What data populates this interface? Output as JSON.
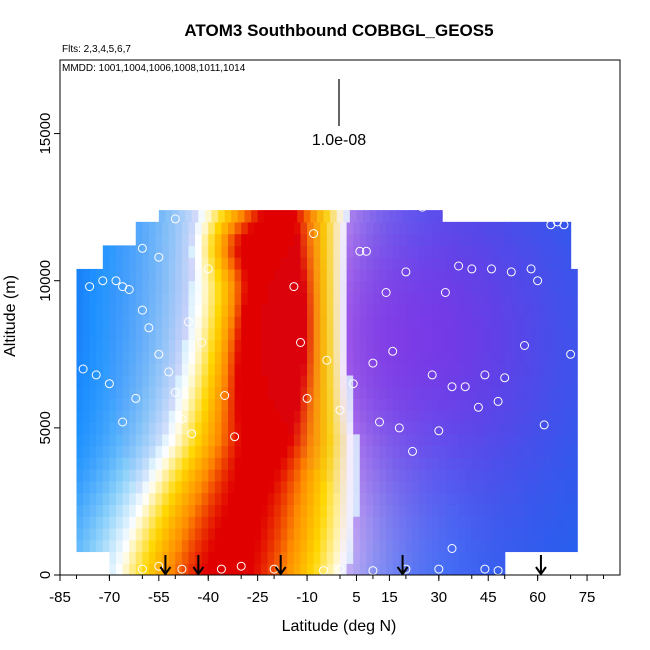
{
  "chart_data": {
    "type": "heatmap",
    "title": "ATOM3 Southbound COBBGL_GEOS5",
    "flights_label": "Flts: 2,3,4,5,6,7",
    "dates_label": "MMDD: 1001,1004,1006,1008,1011,1014",
    "xlabel": "Latitude (deg N)",
    "ylabel": "Altitude (m)",
    "xlim": [
      -85,
      85
    ],
    "ylim": [
      0,
      17500
    ],
    "x_ticks": [
      -85,
      -70,
      -55,
      -40,
      -25,
      -10,
      5,
      15,
      30,
      45,
      60,
      75
    ],
    "y_ticks": [
      0,
      5000,
      10000,
      15000
    ],
    "x_tick_labels": [
      "-85",
      "-70",
      "-55",
      "-40",
      "-25",
      "-10",
      "5",
      "15",
      "30",
      "45",
      "60",
      "75"
    ],
    "y_tick_labels": [
      "0",
      "5000",
      "10000",
      "15000"
    ],
    "scale_label": "1.0e-08",
    "colormap": [
      "#0000c8",
      "#1e90ff",
      "#87cefa",
      "#ffffff",
      "#ffd700",
      "#ff8c00",
      "#e00000"
    ],
    "secondary_color": "#8a2be2",
    "grid": false,
    "flight_marker_latitudes": [
      -53,
      -43,
      -18,
      19,
      61
    ],
    "samples": [
      {
        "lat": -60,
        "alt": 9000
      },
      {
        "lat": -58,
        "alt": 8400
      },
      {
        "lat": -55,
        "alt": 7500
      },
      {
        "lat": -52,
        "alt": 6900
      },
      {
        "lat": -50,
        "alt": 6200
      },
      {
        "lat": -48,
        "alt": 5300
      },
      {
        "lat": -45,
        "alt": 4800
      },
      {
        "lat": -62,
        "alt": 6000
      },
      {
        "lat": -66,
        "alt": 5200
      },
      {
        "lat": -70,
        "alt": 6500
      },
      {
        "lat": -74,
        "alt": 6800
      },
      {
        "lat": -78,
        "alt": 7000
      },
      {
        "lat": -68,
        "alt": 10000
      },
      {
        "lat": -64,
        "alt": 9700
      },
      {
        "lat": -60,
        "alt": 11100
      },
      {
        "lat": -55,
        "alt": 10800
      },
      {
        "lat": -50,
        "alt": 12100
      },
      {
        "lat": -46,
        "alt": 8600
      },
      {
        "lat": -42,
        "alt": 7900
      },
      {
        "lat": -40,
        "alt": 10400
      },
      {
        "lat": -35,
        "alt": 6100
      },
      {
        "lat": -32,
        "alt": 4700
      },
      {
        "lat": -14,
        "alt": 9800
      },
      {
        "lat": -12,
        "alt": 7900
      },
      {
        "lat": -10,
        "alt": 6000
      },
      {
        "lat": -8,
        "alt": 11600
      },
      {
        "lat": -4,
        "alt": 7300
      },
      {
        "lat": 0,
        "alt": 5600
      },
      {
        "lat": 4,
        "alt": 6500
      },
      {
        "lat": 6,
        "alt": 11000
      },
      {
        "lat": 8,
        "alt": 11000
      },
      {
        "lat": 10,
        "alt": 7200
      },
      {
        "lat": 12,
        "alt": 5200
      },
      {
        "lat": 14,
        "alt": 9600
      },
      {
        "lat": 16,
        "alt": 7600
      },
      {
        "lat": 18,
        "alt": 5000
      },
      {
        "lat": 20,
        "alt": 10300
      },
      {
        "lat": 22,
        "alt": 4200
      },
      {
        "lat": 25,
        "alt": 12500
      },
      {
        "lat": 28,
        "alt": 6800
      },
      {
        "lat": 30,
        "alt": 4900
      },
      {
        "lat": 32,
        "alt": 9600
      },
      {
        "lat": 34,
        "alt": 6400
      },
      {
        "lat": 36,
        "alt": 10500
      },
      {
        "lat": 38,
        "alt": 6400
      },
      {
        "lat": 40,
        "alt": 10400
      },
      {
        "lat": 42,
        "alt": 5700
      },
      {
        "lat": 44,
        "alt": 6800
      },
      {
        "lat": 46,
        "alt": 10400
      },
      {
        "lat": 48,
        "alt": 5900
      },
      {
        "lat": 50,
        "alt": 6700
      },
      {
        "lat": 52,
        "alt": 10300
      },
      {
        "lat": 56,
        "alt": 7800
      },
      {
        "lat": 58,
        "alt": 10400
      },
      {
        "lat": 60,
        "alt": 10000
      },
      {
        "lat": 62,
        "alt": 5100
      },
      {
        "lat": 64,
        "alt": 11900
      },
      {
        "lat": 66,
        "alt": 12000
      },
      {
        "lat": 68,
        "alt": 11900
      },
      {
        "lat": 70,
        "alt": 7500
      },
      {
        "lat": -76,
        "alt": 9800
      },
      {
        "lat": -72,
        "alt": 10000
      },
      {
        "lat": -66,
        "alt": 9800
      },
      {
        "lat": -60,
        "alt": 200
      },
      {
        "lat": -55,
        "alt": 300
      },
      {
        "lat": -48,
        "alt": 200
      },
      {
        "lat": -36,
        "alt": 200
      },
      {
        "lat": -30,
        "alt": 300
      },
      {
        "lat": -20,
        "alt": 200
      },
      {
        "lat": -5,
        "alt": 150
      },
      {
        "lat": 0,
        "alt": 200
      },
      {
        "lat": 10,
        "alt": 150
      },
      {
        "lat": 20,
        "alt": 200
      },
      {
        "lat": 30,
        "alt": 200
      },
      {
        "lat": 34,
        "alt": 900
      },
      {
        "lat": 44,
        "alt": 200
      },
      {
        "lat": 48,
        "alt": 150
      },
      {
        "lat": 54,
        "alt": 500
      }
    ]
  }
}
